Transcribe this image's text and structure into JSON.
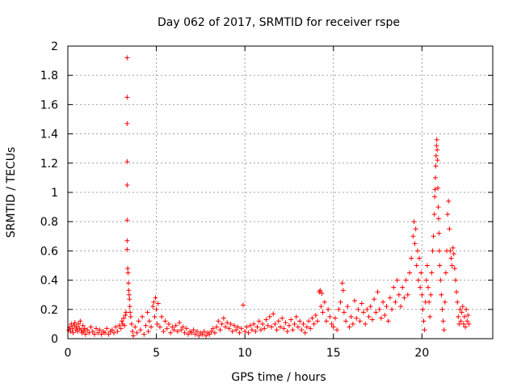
{
  "chart_data": {
    "type": "scatter",
    "title": "Day 062 of 2017, SRMTID for receiver rspe",
    "xlabel": "GPS time / hours",
    "ylabel": "SRMTID / TECUs",
    "xlim": [
      0,
      24
    ],
    "ylim": [
      0,
      2
    ],
    "grid": true,
    "marker": "+",
    "color": "#ff0000",
    "x_ticks": [
      {
        "value": 0,
        "label": "0"
      },
      {
        "value": 5,
        "label": "5"
      },
      {
        "value": 10,
        "label": "10"
      },
      {
        "value": 15,
        "label": "15"
      },
      {
        "value": 20,
        "label": "20"
      }
    ],
    "y_ticks": [
      {
        "value": 0,
        "label": "0"
      },
      {
        "value": 0.2,
        "label": "0.2"
      },
      {
        "value": 0.4,
        "label": "0.4"
      },
      {
        "value": 0.6,
        "label": "0.6"
      },
      {
        "value": 0.8,
        "label": "0.8"
      },
      {
        "value": 1.0,
        "label": "1"
      },
      {
        "value": 1.2,
        "label": "1.2"
      },
      {
        "value": 1.4,
        "label": "1.4"
      },
      {
        "value": 1.6,
        "label": "1.6"
      },
      {
        "value": 1.8,
        "label": "1.8"
      },
      {
        "value": 2.0,
        "label": "2"
      }
    ],
    "points": [
      [
        0.05,
        0.06
      ],
      [
        0.1,
        0.08
      ],
      [
        0.15,
        0.05
      ],
      [
        0.2,
        0.1
      ],
      [
        0.25,
        0.07
      ],
      [
        0.3,
        0.04
      ],
      [
        0.35,
        0.09
      ],
      [
        0.4,
        0.11
      ],
      [
        0.45,
        0.06
      ],
      [
        0.5,
        0.08
      ],
      [
        0.55,
        0.05
      ],
      [
        0.6,
        0.1
      ],
      [
        0.65,
        0.07
      ],
      [
        0.7,
        0.12
      ],
      [
        0.75,
        0.06
      ],
      [
        0.8,
        0.04
      ],
      [
        0.85,
        0.09
      ],
      [
        0.9,
        0.05
      ],
      [
        0.95,
        0.07
      ],
      [
        1.0,
        0.03
      ],
      [
        1.1,
        0.06
      ],
      [
        1.2,
        0.04
      ],
      [
        1.3,
        0.08
      ],
      [
        1.4,
        0.05
      ],
      [
        1.5,
        0.03
      ],
      [
        1.6,
        0.07
      ],
      [
        1.7,
        0.04
      ],
      [
        1.8,
        0.06
      ],
      [
        1.9,
        0.03
      ],
      [
        2.0,
        0.05
      ],
      [
        2.1,
        0.04
      ],
      [
        2.2,
        0.07
      ],
      [
        2.3,
        0.03
      ],
      [
        2.4,
        0.05
      ],
      [
        2.5,
        0.06
      ],
      [
        2.6,
        0.04
      ],
      [
        2.7,
        0.08
      ],
      [
        2.8,
        0.05
      ],
      [
        2.9,
        0.09
      ],
      [
        3.0,
        0.07
      ],
      [
        3.05,
        0.12
      ],
      [
        3.1,
        0.1
      ],
      [
        3.15,
        0.14
      ],
      [
        3.2,
        0.09
      ],
      [
        3.25,
        0.16
      ],
      [
        3.28,
        0.18
      ],
      [
        3.35,
        1.92
      ],
      [
        3.35,
        1.65
      ],
      [
        3.35,
        1.47
      ],
      [
        3.35,
        1.21
      ],
      [
        3.35,
        1.05
      ],
      [
        3.35,
        0.81
      ],
      [
        3.35,
        0.67
      ],
      [
        3.35,
        0.61
      ],
      [
        3.38,
        0.48
      ],
      [
        3.4,
        0.45
      ],
      [
        3.42,
        0.38
      ],
      [
        3.44,
        0.33
      ],
      [
        3.46,
        0.3
      ],
      [
        3.48,
        0.27
      ],
      [
        3.5,
        0.22
      ],
      [
        3.52,
        0.18
      ],
      [
        3.55,
        0.15
      ],
      [
        3.6,
        0.1
      ],
      [
        3.65,
        0.05
      ],
      [
        3.7,
        0.02
      ],
      [
        3.8,
        0.08
      ],
      [
        3.9,
        0.04
      ],
      [
        4.0,
        0.12
      ],
      [
        4.1,
        0.06
      ],
      [
        4.2,
        0.15
      ],
      [
        4.3,
        0.03
      ],
      [
        4.4,
        0.09
      ],
      [
        4.5,
        0.18
      ],
      [
        4.55,
        0.05
      ],
      [
        4.6,
        0.12
      ],
      [
        4.7,
        0.08
      ],
      [
        4.8,
        0.22
      ],
      [
        4.85,
        0.25
      ],
      [
        4.9,
        0.15
      ],
      [
        4.95,
        0.28
      ],
      [
        5.0,
        0.2
      ],
      [
        5.05,
        0.1
      ],
      [
        5.1,
        0.24
      ],
      [
        5.2,
        0.08
      ],
      [
        5.3,
        0.15
      ],
      [
        5.4,
        0.05
      ],
      [
        5.5,
        0.12
      ],
      [
        5.6,
        0.07
      ],
      [
        5.7,
        0.1
      ],
      [
        5.8,
        0.04
      ],
      [
        5.9,
        0.08
      ],
      [
        6.0,
        0.06
      ],
      [
        6.1,
        0.09
      ],
      [
        6.2,
        0.05
      ],
      [
        6.3,
        0.11
      ],
      [
        6.4,
        0.06
      ],
      [
        6.5,
        0.08
      ],
      [
        6.6,
        0.04
      ],
      [
        6.7,
        0.07
      ],
      [
        6.8,
        0.03
      ],
      [
        6.9,
        0.05
      ],
      [
        7.0,
        0.04
      ],
      [
        7.1,
        0.06
      ],
      [
        7.2,
        0.03
      ],
      [
        7.3,
        0.05
      ],
      [
        7.4,
        0.02
      ],
      [
        7.5,
        0.04
      ],
      [
        7.6,
        0.03
      ],
      [
        7.7,
        0.05
      ],
      [
        7.8,
        0.02
      ],
      [
        7.9,
        0.04
      ],
      [
        8.0,
        0.03
      ],
      [
        8.1,
        0.05
      ],
      [
        8.2,
        0.07
      ],
      [
        8.3,
        0.04
      ],
      [
        8.4,
        0.08
      ],
      [
        8.5,
        0.12
      ],
      [
        8.6,
        0.06
      ],
      [
        8.7,
        0.1
      ],
      [
        8.8,
        0.14
      ],
      [
        8.9,
        0.08
      ],
      [
        9.0,
        0.11
      ],
      [
        9.1,
        0.07
      ],
      [
        9.2,
        0.1
      ],
      [
        9.3,
        0.05
      ],
      [
        9.4,
        0.09
      ],
      [
        9.5,
        0.06
      ],
      [
        9.6,
        0.08
      ],
      [
        9.7,
        0.04
      ],
      [
        9.8,
        0.07
      ],
      [
        9.9,
        0.23
      ],
      [
        10.0,
        0.05
      ],
      [
        10.1,
        0.08
      ],
      [
        10.2,
        0.04
      ],
      [
        10.3,
        0.09
      ],
      [
        10.4,
        0.06
      ],
      [
        10.5,
        0.1
      ],
      [
        10.6,
        0.05
      ],
      [
        10.7,
        0.08
      ],
      [
        10.8,
        0.12
      ],
      [
        10.9,
        0.06
      ],
      [
        11.0,
        0.1
      ],
      [
        11.1,
        0.07
      ],
      [
        11.2,
        0.13
      ],
      [
        11.3,
        0.09
      ],
      [
        11.4,
        0.15
      ],
      [
        11.5,
        0.08
      ],
      [
        11.6,
        0.17
      ],
      [
        11.7,
        0.1
      ],
      [
        11.8,
        0.06
      ],
      [
        11.9,
        0.12
      ],
      [
        12.0,
        0.08
      ],
      [
        12.1,
        0.14
      ],
      [
        12.2,
        0.07
      ],
      [
        12.3,
        0.11
      ],
      [
        12.4,
        0.05
      ],
      [
        12.5,
        0.09
      ],
      [
        12.6,
        0.13
      ],
      [
        12.7,
        0.06
      ],
      [
        12.8,
        0.1
      ],
      [
        12.9,
        0.15
      ],
      [
        13.0,
        0.08
      ],
      [
        13.1,
        0.12
      ],
      [
        13.2,
        0.06
      ],
      [
        13.3,
        0.1
      ],
      [
        13.4,
        0.04
      ],
      [
        13.5,
        0.08
      ],
      [
        13.6,
        0.12
      ],
      [
        13.7,
        0.07
      ],
      [
        13.8,
        0.14
      ],
      [
        13.9,
        0.1
      ],
      [
        14.0,
        0.16
      ],
      [
        14.1,
        0.12
      ],
      [
        14.2,
        0.32
      ],
      [
        14.25,
        0.33
      ],
      [
        14.3,
        0.22
      ],
      [
        14.35,
        0.31
      ],
      [
        14.4,
        0.18
      ],
      [
        14.5,
        0.25
      ],
      [
        14.6,
        0.12
      ],
      [
        14.7,
        0.2
      ],
      [
        14.8,
        0.15
      ],
      [
        14.9,
        0.1
      ],
      [
        15.0,
        0.08
      ],
      [
        15.1,
        0.14
      ],
      [
        15.2,
        0.06
      ],
      [
        15.3,
        0.2
      ],
      [
        15.4,
        0.25
      ],
      [
        15.5,
        0.38
      ],
      [
        15.55,
        0.33
      ],
      [
        15.6,
        0.18
      ],
      [
        15.7,
        0.12
      ],
      [
        15.8,
        0.22
      ],
      [
        15.9,
        0.08
      ],
      [
        16.0,
        0.15
      ],
      [
        16.1,
        0.1
      ],
      [
        16.2,
        0.26
      ],
      [
        16.3,
        0.14
      ],
      [
        16.4,
        0.2
      ],
      [
        16.5,
        0.12
      ],
      [
        16.6,
        0.24
      ],
      [
        16.7,
        0.18
      ],
      [
        16.8,
        0.1
      ],
      [
        16.9,
        0.2
      ],
      [
        17.0,
        0.15
      ],
      [
        17.1,
        0.22
      ],
      [
        17.2,
        0.13
      ],
      [
        17.3,
        0.27
      ],
      [
        17.4,
        0.18
      ],
      [
        17.5,
        0.32
      ],
      [
        17.6,
        0.2
      ],
      [
        17.7,
        0.14
      ],
      [
        17.8,
        0.25
      ],
      [
        17.9,
        0.16
      ],
      [
        18.0,
        0.22
      ],
      [
        18.1,
        0.12
      ],
      [
        18.2,
        0.28
      ],
      [
        18.3,
        0.2
      ],
      [
        18.4,
        0.35
      ],
      [
        18.5,
        0.25
      ],
      [
        18.6,
        0.4
      ],
      [
        18.7,
        0.3
      ],
      [
        18.8,
        0.22
      ],
      [
        18.9,
        0.35
      ],
      [
        19.0,
        0.28
      ],
      [
        19.1,
        0.4
      ],
      [
        19.2,
        0.3
      ],
      [
        19.3,
        0.45
      ],
      [
        19.4,
        0.55
      ],
      [
        19.5,
        0.7
      ],
      [
        19.55,
        0.8
      ],
      [
        19.6,
        0.65
      ],
      [
        19.65,
        0.75
      ],
      [
        19.7,
        0.5
      ],
      [
        19.75,
        0.6
      ],
      [
        19.8,
        0.4
      ],
      [
        19.85,
        0.55
      ],
      [
        19.9,
        0.35
      ],
      [
        19.95,
        0.45
      ],
      [
        20.0,
        0.3
      ],
      [
        20.05,
        0.2
      ],
      [
        20.1,
        0.12
      ],
      [
        20.15,
        0.06
      ],
      [
        20.2,
        0.25
      ],
      [
        20.25,
        0.4
      ],
      [
        20.3,
        0.5
      ],
      [
        20.35,
        0.35
      ],
      [
        20.4,
        0.25
      ],
      [
        20.45,
        0.15
      ],
      [
        20.5,
        0.3
      ],
      [
        20.55,
        0.45
      ],
      [
        20.6,
        0.6
      ],
      [
        20.65,
        0.7
      ],
      [
        20.7,
        0.85
      ],
      [
        20.72,
        0.97
      ],
      [
        20.74,
        1.02
      ],
      [
        20.76,
        1.1
      ],
      [
        20.78,
        1.18
      ],
      [
        20.8,
        1.25
      ],
      [
        20.82,
        1.32
      ],
      [
        20.84,
        1.36
      ],
      [
        20.86,
        1.29
      ],
      [
        20.88,
        1.22
      ],
      [
        20.9,
        1.03
      ],
      [
        20.92,
        0.9
      ],
      [
        20.94,
        0.82
      ],
      [
        20.96,
        0.72
      ],
      [
        20.98,
        0.6
      ],
      [
        21.0,
        0.5
      ],
      [
        21.05,
        0.4
      ],
      [
        21.1,
        0.3
      ],
      [
        21.15,
        0.2
      ],
      [
        21.2,
        0.12
      ],
      [
        21.25,
        0.06
      ],
      [
        21.3,
        0.25
      ],
      [
        21.35,
        0.45
      ],
      [
        21.4,
        0.6
      ],
      [
        21.45,
        0.85
      ],
      [
        21.5,
        0.94
      ],
      [
        21.55,
        0.75
      ],
      [
        21.6,
        0.6
      ],
      [
        21.65,
        0.55
      ],
      [
        21.7,
        0.5
      ],
      [
        21.75,
        0.62
      ],
      [
        21.8,
        0.58
      ],
      [
        21.85,
        0.48
      ],
      [
        21.9,
        0.4
      ],
      [
        21.95,
        0.32
      ],
      [
        22.0,
        0.25
      ],
      [
        22.05,
        0.15
      ],
      [
        22.1,
        0.1
      ],
      [
        22.15,
        0.2
      ],
      [
        22.2,
        0.12
      ],
      [
        22.25,
        0.18
      ],
      [
        22.3,
        0.22
      ],
      [
        22.35,
        0.1
      ],
      [
        22.4,
        0.15
      ],
      [
        22.45,
        0.08
      ],
      [
        22.5,
        0.2
      ],
      [
        22.55,
        0.12
      ],
      [
        22.6,
        0.16
      ],
      [
        22.65,
        0.1
      ]
    ]
  }
}
